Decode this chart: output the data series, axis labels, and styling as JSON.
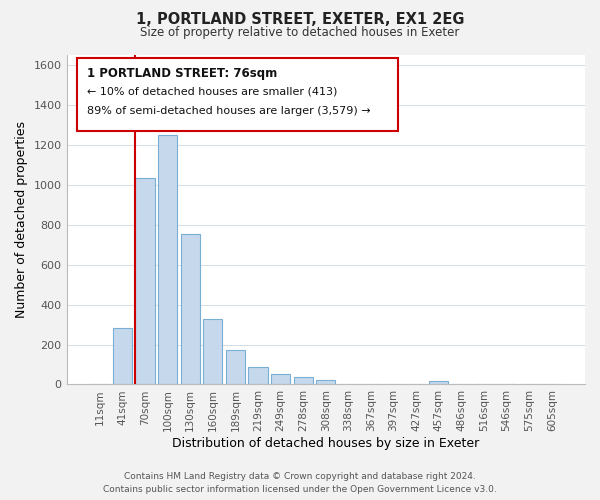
{
  "title": "1, PORTLAND STREET, EXETER, EX1 2EG",
  "subtitle": "Size of property relative to detached houses in Exeter",
  "xlabel": "Distribution of detached houses by size in Exeter",
  "ylabel": "Number of detached properties",
  "bar_labels": [
    "11sqm",
    "41sqm",
    "70sqm",
    "100sqm",
    "130sqm",
    "160sqm",
    "189sqm",
    "219sqm",
    "249sqm",
    "278sqm",
    "308sqm",
    "338sqm",
    "367sqm",
    "397sqm",
    "427sqm",
    "457sqm",
    "486sqm",
    "516sqm",
    "546sqm",
    "575sqm",
    "605sqm"
  ],
  "bar_values": [
    0,
    285,
    1035,
    1250,
    755,
    330,
    175,
    85,
    50,
    38,
    20,
    0,
    0,
    0,
    0,
    15,
    0,
    0,
    0,
    0,
    0
  ],
  "bar_color": "#c6d9ec",
  "bar_edge_color": "#7aafd4",
  "ylim": [
    0,
    1650
  ],
  "yticks": [
    0,
    200,
    400,
    600,
    800,
    1000,
    1200,
    1400,
    1600
  ],
  "property_line_color": "#cc0000",
  "property_line_idx": 1.575,
  "annotation_title": "1 PORTLAND STREET: 76sqm",
  "annotation_line1": "← 10% of detached houses are smaller (413)",
  "annotation_line2": "89% of semi-detached houses are larger (3,579) →",
  "footer_line1": "Contains HM Land Registry data © Crown copyright and database right 2024.",
  "footer_line2": "Contains public sector information licensed under the Open Government Licence v3.0.",
  "background_color": "#f2f2f2",
  "plot_background_color": "#ffffff",
  "grid_color": "#d5dde5"
}
